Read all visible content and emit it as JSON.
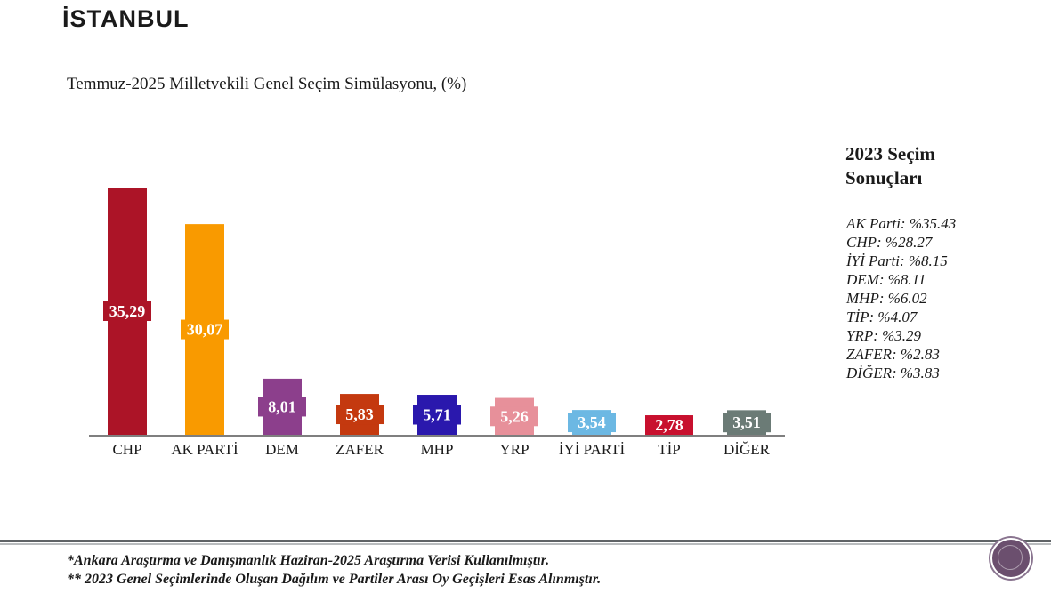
{
  "header": {
    "title": "İSTANBUL",
    "chart_title": "Temmuz-2025 Milletvekili Genel Seçim Simülasyonu, (%)"
  },
  "chart_data": {
    "type": "bar",
    "title": "Temmuz-2025 Milletvekili Genel Seçim Simülasyonu, (%)",
    "xlabel": "",
    "ylabel": "",
    "categories": [
      "CHP",
      "AK PARTİ",
      "DEM",
      "ZAFER",
      "MHP",
      "YRP",
      "İYİ PARTİ",
      "TİP",
      "DİĞER"
    ],
    "values": [
      35.29,
      30.07,
      8.01,
      5.83,
      5.71,
      5.26,
      3.54,
      2.78,
      3.51
    ],
    "value_labels": [
      "35,29",
      "30,07",
      "8,01",
      "5,83",
      "5,71",
      "5,26",
      "3,54",
      "2,78",
      "3,51"
    ],
    "colors": [
      "#ac1427",
      "#f99a00",
      "#8c3f8c",
      "#c4390f",
      "#2a18ad",
      "#e7909a",
      "#6cb8e3",
      "#c8102e",
      "#6b7b76"
    ],
    "ylim": [
      0,
      35.29
    ],
    "grid": false,
    "legend": "none"
  },
  "results_2023": {
    "heading_line1": "2023 Seçim",
    "heading_line2": "Sonuçları",
    "items": [
      "AK Parti: %35.43",
      "CHP: %28.27",
      "İYİ Parti: %8.15",
      "DEM: %8.11",
      "MHP: %6.02",
      "TİP: %4.07",
      "YRP: %3.29",
      "ZAFER: %2.83",
      "DİĞER: %3.83"
    ]
  },
  "footer": {
    "note1": "*Ankara Araştırma ve Danışmanlık Haziran-2025 Araştırma Verisi Kullanılmıştır.",
    "note2": "** 2023 Genel Seçimlerinde Oluşan Dağılım ve Partiler Arası Oy Geçişleri Esas Alınmıştır."
  }
}
